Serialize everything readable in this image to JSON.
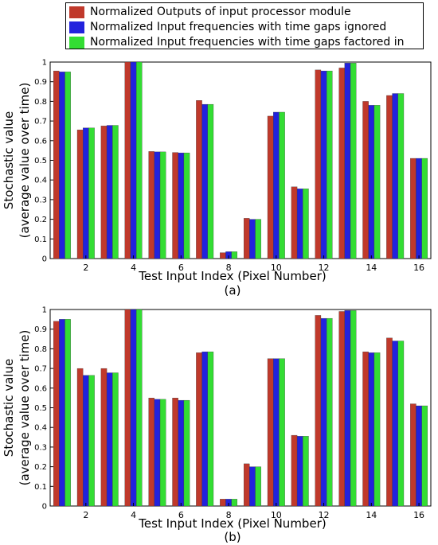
{
  "legend": {
    "items": [
      {
        "label": "Normalized Outputs of input processor module",
        "color": "#c0392b"
      },
      {
        "label": "Normalized Input frequencies with time gaps ignored",
        "color": "#2222dd"
      },
      {
        "label": "Normalized Input frequencies with time gaps factored in",
        "color": "#33dd33"
      }
    ]
  },
  "chart_data": [
    {
      "type": "bar",
      "panel_label": "(a)",
      "xlabel": "Test Input Index (Pixel Number)",
      "ylabel": [
        "Stochastic value",
        "(average value over time)"
      ],
      "ylim": [
        0,
        1
      ],
      "yticks": [
        "0",
        "0.1",
        "0.2",
        "0.3",
        "0.4",
        "0.5",
        "0.6",
        "0.7",
        "0.8",
        "0.9",
        "1"
      ],
      "xticks": [
        "2",
        "4",
        "6",
        "8",
        "10",
        "12",
        "14",
        "16"
      ],
      "categories": [
        "1",
        "2",
        "3",
        "4",
        "5",
        "6",
        "7",
        "8",
        "9",
        "10",
        "11",
        "12",
        "13",
        "14",
        "15",
        "16"
      ],
      "series": [
        {
          "name": "Normalized Outputs of input processor module",
          "values": [
            0.955,
            0.655,
            0.675,
            1.0,
            0.545,
            0.54,
            0.805,
            0.03,
            0.205,
            0.725,
            0.365,
            0.96,
            0.97,
            0.8,
            0.83,
            0.51
          ]
        },
        {
          "name": "Normalized Input frequencies with time gaps ignored",
          "values": [
            0.95,
            0.665,
            0.678,
            1.0,
            0.543,
            0.538,
            0.785,
            0.035,
            0.2,
            0.745,
            0.355,
            0.955,
            0.995,
            0.78,
            0.84,
            0.51
          ]
        },
        {
          "name": "Normalized Input frequencies with time gaps factored in",
          "values": [
            0.95,
            0.665,
            0.678,
            1.0,
            0.543,
            0.538,
            0.785,
            0.035,
            0.2,
            0.745,
            0.355,
            0.955,
            0.995,
            0.78,
            0.84,
            0.51
          ]
        }
      ]
    },
    {
      "type": "bar",
      "panel_label": "(b)",
      "xlabel": "Test Input Index (Pixel Number)",
      "ylabel": [
        "Stochastic value",
        "(average value over time)"
      ],
      "ylim": [
        0,
        1
      ],
      "yticks": [
        "0",
        "0.1",
        "0.2",
        "0.3",
        "0.4",
        "0.5",
        "0.6",
        "0.7",
        "0.8",
        "0.9",
        "1"
      ],
      "xticks": [
        "2",
        "4",
        "6",
        "8",
        "10",
        "12",
        "14",
        "16"
      ],
      "categories": [
        "1",
        "2",
        "3",
        "4",
        "5",
        "6",
        "7",
        "8",
        "9",
        "10",
        "11",
        "12",
        "13",
        "14",
        "15",
        "16"
      ],
      "series": [
        {
          "name": "Normalized Outputs of input processor module",
          "values": [
            0.94,
            0.7,
            0.7,
            1.0,
            0.55,
            0.55,
            0.78,
            0.035,
            0.215,
            0.75,
            0.36,
            0.97,
            0.99,
            0.785,
            0.855,
            0.52
          ]
        },
        {
          "name": "Normalized Input frequencies with time gaps ignored",
          "values": [
            0.95,
            0.665,
            0.678,
            1.0,
            0.543,
            0.538,
            0.785,
            0.035,
            0.2,
            0.75,
            0.355,
            0.955,
            0.995,
            0.78,
            0.84,
            0.51
          ]
        },
        {
          "name": "Normalized Input frequencies with time gaps factored in",
          "values": [
            0.95,
            0.665,
            0.678,
            1.0,
            0.543,
            0.538,
            0.785,
            0.035,
            0.2,
            0.75,
            0.355,
            0.955,
            0.995,
            0.78,
            0.84,
            0.51
          ]
        }
      ]
    }
  ]
}
